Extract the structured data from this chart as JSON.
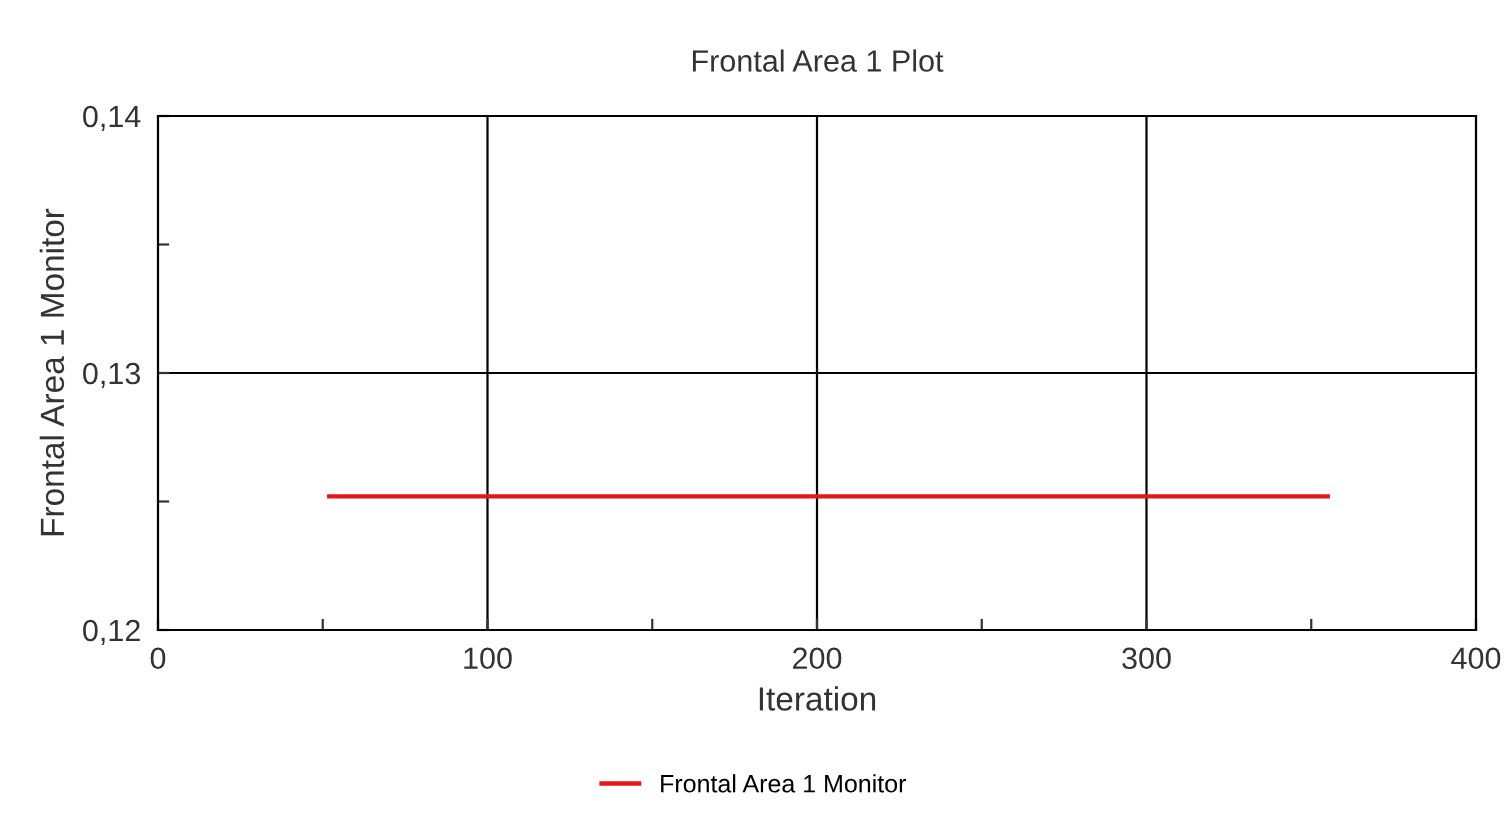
{
  "chart_data": {
    "type": "line",
    "title": "Frontal Area 1 Plot",
    "xlabel": "Iteration",
    "ylabel": "Frontal Area 1 Monitor",
    "series": [
      {
        "name": "Frontal Area 1 Monitor",
        "color": "#e8141b",
        "x": [
          52,
          355
        ],
        "values": [
          0.1252,
          0.1252
        ]
      }
    ],
    "xlim": [
      0,
      400
    ],
    "xticks": [
      0,
      {
        "value": 50,
        "label": null
      },
      100,
      {
        "value": 150,
        "label": null
      },
      200,
      {
        "value": 250,
        "label": null
      },
      300,
      {
        "value": 350,
        "label": null
      },
      400
    ],
    "ylim": [
      0.12,
      0.14
    ],
    "yticks": [
      {
        "value": 0.12,
        "label": "0,12"
      },
      {
        "value": 0.125,
        "label": null
      },
      {
        "value": 0.13,
        "label": "0,13"
      },
      {
        "value": 0.135,
        "label": null
      },
      {
        "value": 0.14,
        "label": "0,14"
      }
    ],
    "grid": true,
    "legend": "bottom",
    "marker": "none",
    "line_style": "solid"
  }
}
